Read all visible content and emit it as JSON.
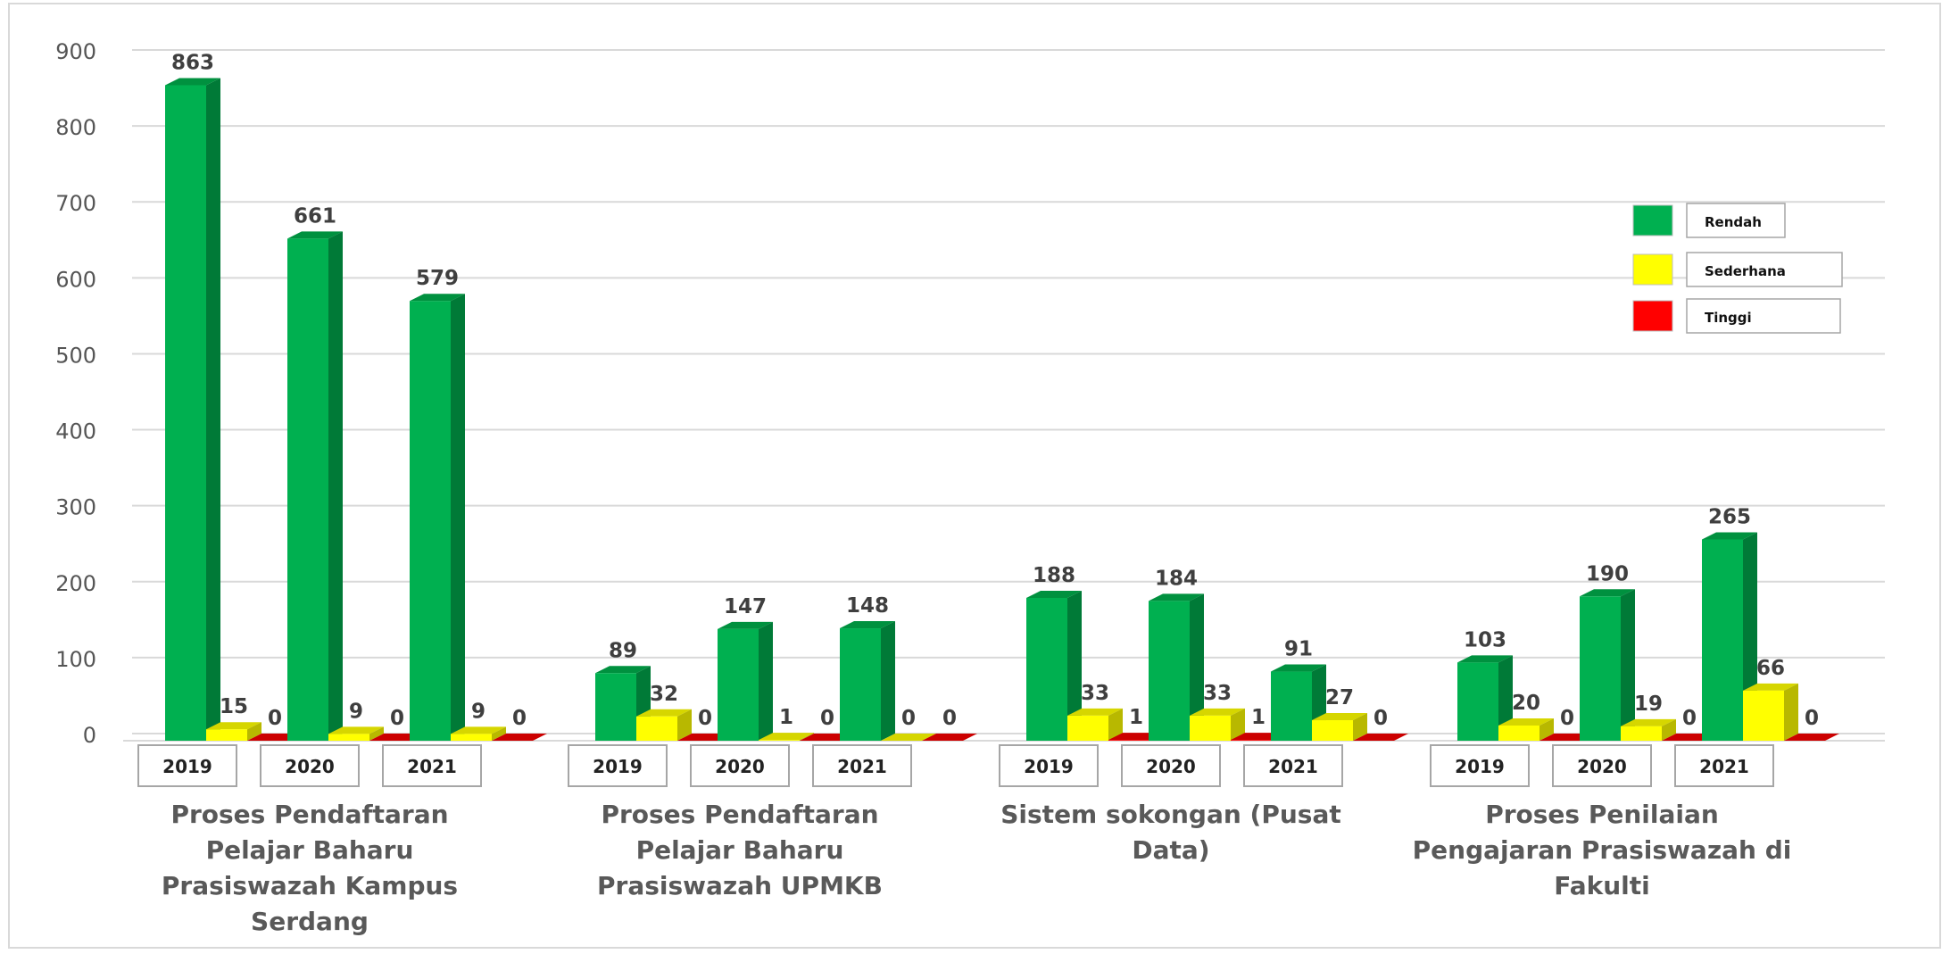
{
  "chart_data": {
    "type": "bar",
    "groups": [
      {
        "label_lines": [
          "Proses Pendaftaran",
          "Pelajar Baharu",
          "Prasiswazah Kampus",
          "Serdang"
        ],
        "years": [
          {
            "year": "2019",
            "values": [
              863,
              15,
              0
            ]
          },
          {
            "year": "2020",
            "values": [
              661,
              9,
              0
            ]
          },
          {
            "year": "2021",
            "values": [
              579,
              9,
              0
            ]
          }
        ]
      },
      {
        "label_lines": [
          "Proses Pendaftaran",
          "Pelajar Baharu",
          "Prasiswazah UPMKB"
        ],
        "years": [
          {
            "year": "2019",
            "values": [
              89,
              32,
              0
            ]
          },
          {
            "year": "2020",
            "values": [
              147,
              1,
              0
            ]
          },
          {
            "year": "2021",
            "values": [
              148,
              0,
              0
            ]
          }
        ]
      },
      {
        "label_lines": [
          "Sistem sokongan (Pusat",
          "Data)"
        ],
        "years": [
          {
            "year": "2019",
            "values": [
              188,
              33,
              1
            ]
          },
          {
            "year": "2020",
            "values": [
              184,
              33,
              1
            ]
          },
          {
            "year": "2021",
            "values": [
              91,
              27,
              0
            ]
          }
        ]
      },
      {
        "label_lines": [
          "Proses Penilaian",
          "Pengajaran Prasiswazah di",
          "Fakulti"
        ],
        "years": [
          {
            "year": "2019",
            "values": [
              103,
              20,
              0
            ]
          },
          {
            "year": "2020",
            "values": [
              190,
              19,
              0
            ]
          },
          {
            "year": "2021",
            "values": [
              265,
              66,
              0
            ]
          }
        ]
      }
    ],
    "series": [
      {
        "name": "Rendah",
        "color": "#00b050",
        "side": "#007a37",
        "top": "#00913f"
      },
      {
        "name": "Sederhana",
        "color": "#ffff00",
        "side": "#b8b800",
        "top": "#d6d600"
      },
      {
        "name": "Tinggi",
        "color": "#ff0000",
        "side": "#b00000",
        "top": "#cc0000"
      }
    ],
    "yticks": [
      0,
      100,
      200,
      300,
      400,
      500,
      600,
      700,
      800,
      900
    ],
    "ylim": [
      0,
      900
    ],
    "grid": true,
    "legend_position": "right",
    "title": "",
    "xlabel": "",
    "ylabel": ""
  }
}
